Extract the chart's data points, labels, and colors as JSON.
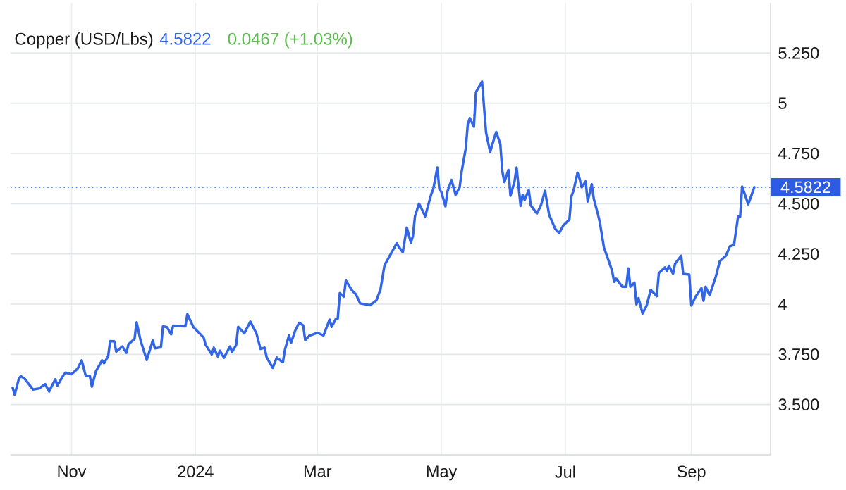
{
  "chart_data": {
    "type": "line",
    "title": "Copper (USD/Lbs)",
    "annotations": [
      "4.5822",
      "0.0467 (+1.03%)"
    ],
    "x": [
      "2023-10-03",
      "2023-10-04",
      "2023-10-06",
      "2023-10-07",
      "2023-10-09",
      "2023-10-13",
      "2023-10-16",
      "2023-10-19",
      "2023-10-21",
      "2023-10-22",
      "2023-10-24",
      "2023-10-25",
      "2023-10-28",
      "2023-10-29",
      "2023-11-01",
      "2023-11-04",
      "2023-11-06",
      "2023-11-08",
      "2023-11-10",
      "2023-11-11",
      "2023-11-13",
      "2023-11-16",
      "2023-11-17",
      "2023-11-19",
      "2023-11-20",
      "2023-11-22",
      "2023-11-23",
      "2023-11-26",
      "2023-11-28",
      "2023-11-29",
      "2023-12-02",
      "2023-12-03",
      "2023-12-05",
      "2023-12-08",
      "2023-12-11",
      "2023-12-12",
      "2023-12-15",
      "2023-12-16",
      "2023-12-18",
      "2023-12-20",
      "2023-12-21",
      "2023-12-27",
      "2023-12-28",
      "2023-12-31",
      "2024-01-05",
      "2024-01-06",
      "2024-01-09",
      "2024-01-10",
      "2024-01-12",
      "2024-01-13",
      "2024-01-15",
      "2024-01-18",
      "2024-01-19",
      "2024-01-21",
      "2024-01-22",
      "2024-01-25",
      "2024-01-28",
      "2024-01-31",
      "2024-02-02",
      "2024-02-04",
      "2024-02-05",
      "2024-02-08",
      "2024-02-10",
      "2024-02-13",
      "2024-02-14",
      "2024-02-16",
      "2024-02-17",
      "2024-02-19",
      "2024-02-21",
      "2024-02-23",
      "2024-02-24",
      "2024-02-26",
      "2024-03-01",
      "2024-03-04",
      "2024-03-05",
      "2024-03-07",
      "2024-03-08",
      "2024-03-10",
      "2024-03-11",
      "2024-03-12",
      "2024-03-14",
      "2024-03-15",
      "2024-03-18",
      "2024-03-20",
      "2024-03-22",
      "2024-03-27",
      "2024-03-30",
      "2024-04-01",
      "2024-04-03",
      "2024-04-09",
      "2024-04-10",
      "2024-04-12",
      "2024-04-14",
      "2024-04-16",
      "2024-04-17",
      "2024-04-18",
      "2024-04-20",
      "2024-04-21",
      "2024-04-23",
      "2024-04-26",
      "2024-04-27",
      "2024-04-29",
      "2024-04-30",
      "2024-05-01",
      "2024-05-03",
      "2024-05-04",
      "2024-05-06",
      "2024-05-08",
      "2024-05-10",
      "2024-05-11",
      "2024-05-13",
      "2024-05-14",
      "2024-05-15",
      "2024-05-17",
      "2024-05-18",
      "2024-05-21",
      "2024-05-23",
      "2024-05-25",
      "2024-05-27",
      "2024-05-28",
      "2024-05-30",
      "2024-05-31",
      "2024-06-01",
      "2024-06-03",
      "2024-06-04",
      "2024-06-06",
      "2024-06-07",
      "2024-06-09",
      "2024-06-10",
      "2024-06-11",
      "2024-06-13",
      "2024-06-14",
      "2024-06-17",
      "2024-06-19",
      "2024-06-21",
      "2024-06-23",
      "2024-06-26",
      "2024-06-28",
      "2024-06-30",
      "2024-07-03",
      "2024-07-04",
      "2024-07-05",
      "2024-07-07",
      "2024-07-08",
      "2024-07-09",
      "2024-07-11",
      "2024-07-12",
      "2024-07-14",
      "2024-07-15",
      "2024-07-17",
      "2024-07-18",
      "2024-07-20",
      "2024-07-24",
      "2024-07-25",
      "2024-07-26",
      "2024-07-29",
      "2024-07-31",
      "2024-08-01",
      "2024-08-02",
      "2024-08-04",
      "2024-08-05",
      "2024-08-06",
      "2024-08-08",
      "2024-08-10",
      "2024-08-12",
      "2024-08-15",
      "2024-08-16",
      "2024-08-19",
      "2024-08-20",
      "2024-08-21",
      "2024-08-23",
      "2024-08-24",
      "2024-08-27",
      "2024-08-28",
      "2024-08-31",
      "2024-09-01",
      "2024-09-03",
      "2024-09-06",
      "2024-09-07",
      "2024-09-08",
      "2024-09-10",
      "2024-09-13",
      "2024-09-15",
      "2024-09-18",
      "2024-09-20",
      "2024-09-22",
      "2024-09-24",
      "2024-09-25",
      "2024-09-26",
      "2024-09-29",
      "2024-10-02"
    ],
    "values": [
      3.585,
      3.549,
      3.626,
      3.642,
      3.628,
      3.575,
      3.58,
      3.602,
      3.565,
      3.587,
      3.626,
      3.595,
      3.646,
      3.659,
      3.651,
      3.679,
      3.72,
      3.642,
      3.642,
      3.589,
      3.666,
      3.72,
      3.706,
      3.74,
      3.816,
      3.815,
      3.764,
      3.789,
      3.758,
      3.8,
      3.827,
      3.91,
      3.818,
      3.722,
      3.82,
      3.78,
      3.785,
      3.89,
      3.885,
      3.85,
      3.893,
      3.89,
      3.95,
      3.885,
      3.834,
      3.797,
      3.75,
      3.783,
      3.74,
      3.768,
      3.733,
      3.789,
      3.762,
      3.796,
      3.887,
      3.855,
      3.913,
      3.854,
      3.777,
      3.783,
      3.736,
      3.683,
      3.734,
      3.71,
      3.773,
      3.844,
      3.807,
      3.867,
      3.907,
      3.894,
      3.82,
      3.843,
      3.858,
      3.844,
      3.871,
      3.923,
      3.887,
      3.925,
      3.927,
      4.055,
      4.037,
      4.118,
      4.068,
      4.048,
      4.004,
      3.995,
      4.019,
      4.072,
      4.193,
      4.303,
      4.286,
      4.259,
      4.381,
      4.306,
      4.339,
      4.437,
      4.5,
      4.481,
      4.437,
      4.547,
      4.572,
      4.68,
      4.572,
      4.558,
      4.487,
      4.561,
      4.618,
      4.544,
      4.582,
      4.661,
      4.776,
      4.897,
      4.926,
      4.883,
      5.055,
      5.108,
      4.854,
      4.757,
      4.826,
      4.857,
      4.797,
      4.661,
      4.607,
      4.668,
      4.54,
      4.611,
      4.68,
      4.489,
      4.544,
      4.518,
      4.568,
      4.492,
      4.451,
      4.492,
      4.564,
      4.446,
      4.375,
      4.354,
      4.392,
      4.421,
      4.537,
      4.564,
      4.654,
      4.625,
      4.582,
      4.611,
      4.511,
      4.597,
      4.525,
      4.449,
      4.406,
      4.282,
      4.167,
      4.111,
      4.127,
      4.087,
      4.087,
      4.178,
      4.087,
      4.107,
      3.999,
      4.03,
      3.953,
      3.993,
      4.071,
      4.04,
      4.154,
      4.183,
      4.165,
      4.191,
      4.151,
      4.201,
      4.241,
      4.151,
      4.147,
      3.993,
      4.036,
      4.08,
      4.017,
      4.087,
      4.044,
      4.136,
      4.214,
      4.241,
      4.288,
      4.295,
      4.436,
      4.435,
      4.585,
      4.497,
      4.582
    ],
    "color": "#3366e6",
    "xlim": [
      "2023-10-02",
      "2024-10-10"
    ],
    "xticks": [
      {
        "value": "2023-11-01",
        "label": "Nov"
      },
      {
        "value": "2024-01-01",
        "label": "2024"
      },
      {
        "value": "2024-03-01",
        "label": "Mar"
      },
      {
        "value": "2024-05-01",
        "label": "May"
      },
      {
        "value": "2024-07-01",
        "label": "Jul"
      },
      {
        "value": "2024-09-01",
        "label": "Sep"
      }
    ],
    "ylim": [
      3.25,
      5.5
    ],
    "yticks": [
      {
        "value": 3.5,
        "label": "3.500"
      },
      {
        "value": 3.75,
        "label": "3.750"
      },
      4,
      {
        "value": 4.25,
        "label": "4.250"
      },
      {
        "value": 4.5,
        "label": "4.500"
      },
      {
        "value": 4.75,
        "label": "4.750"
      },
      5,
      {
        "value": 5.25,
        "label": "5.250"
      }
    ],
    "grid": true,
    "ref_lines": [
      {
        "axis": "y",
        "value": 4.5822,
        "label": "4.5822",
        "color": "#2d5be3",
        "line_style": "dotted"
      }
    ]
  }
}
